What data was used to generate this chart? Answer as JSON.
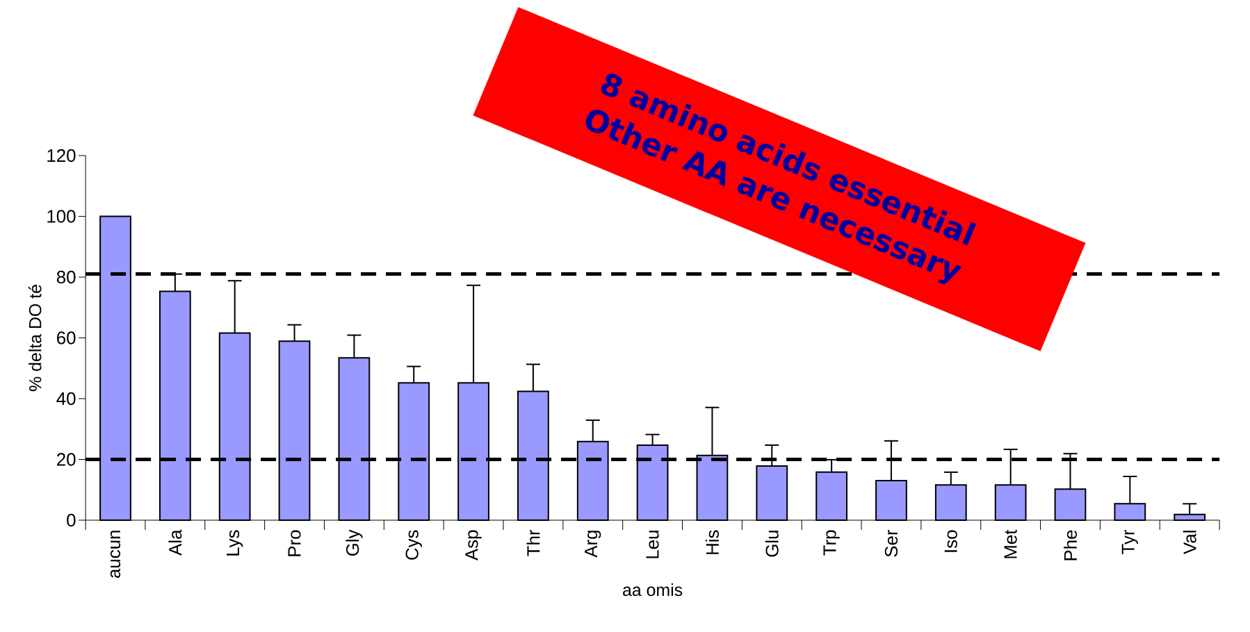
{
  "chart_data": {
    "type": "bar",
    "xlabel": "aa omis",
    "ylabel": "% delta DO té",
    "categories": [
      "aucun",
      "Ala",
      "Lys",
      "Pro",
      "Gly",
      "Cys",
      "Asp",
      "Thr",
      "Arg",
      "Leu",
      "His",
      "Glu",
      "Trp",
      "Ser",
      "Iso",
      "Met",
      "Phe",
      "Tyr",
      "Val"
    ],
    "values": [
      100,
      75.3,
      61.6,
      58.9,
      53.4,
      45.2,
      45.2,
      42.4,
      25.9,
      24.7,
      21.3,
      17.8,
      15.8,
      13,
      11.6,
      11.6,
      10.2,
      5.4,
      1.9
    ],
    "errors": [
      null,
      [
        75.3,
        81
      ],
      [
        61.6,
        78.8
      ],
      [
        58.9,
        64.3
      ],
      [
        53.4,
        60.9
      ],
      [
        45.2,
        50.6
      ],
      [
        45.2,
        77.3
      ],
      [
        42.4,
        51.3
      ],
      [
        25.9,
        32.9
      ],
      [
        24.7,
        28.2
      ],
      [
        21.3,
        37.1
      ],
      [
        17.8,
        24.7
      ],
      [
        15.8,
        19.9
      ],
      [
        13,
        26.1
      ],
      [
        11.6,
        15.8
      ],
      [
        11.6,
        23.3
      ],
      [
        10.2,
        21.9
      ],
      [
        5.4,
        14.4
      ],
      [
        1.9,
        5.4
      ]
    ],
    "color": "#9999ff",
    "ylim": [
      0,
      120
    ],
    "yticks": [
      0,
      20,
      40,
      60,
      80,
      100,
      120
    ],
    "ref_lines": [
      {
        "axis": "y",
        "value": 81,
        "color": "#000000",
        "line_style": "dashed"
      },
      {
        "axis": "y",
        "value": 20,
        "color": "#000000",
        "line_style": "dashed"
      }
    ],
    "annotations": [
      "8 amino acids essential",
      "Other AA are necessary"
    ]
  }
}
